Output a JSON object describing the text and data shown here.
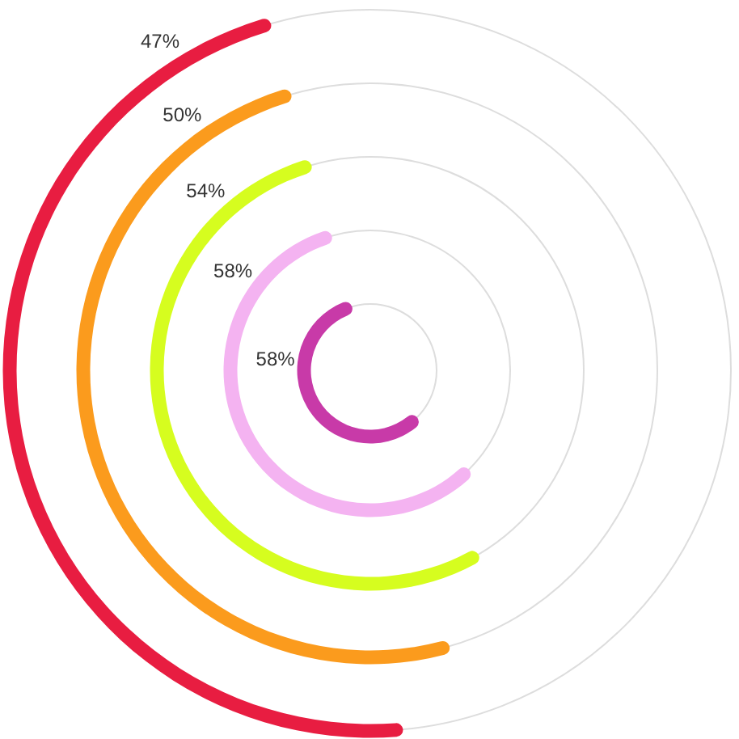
{
  "chart_data": {
    "type": "other",
    "categories": [
      null,
      null,
      null,
      null,
      null
    ],
    "values": [
      47,
      50,
      54,
      58,
      58
    ],
    "colors": [
      "#e81d41",
      "#fb9b1d",
      "#d6fd1f",
      "#f4b3f1",
      "#c83aa8"
    ],
    "value_labels": [
      "47%",
      "50%",
      "54%",
      "58%",
      "58%"
    ]
  }
}
